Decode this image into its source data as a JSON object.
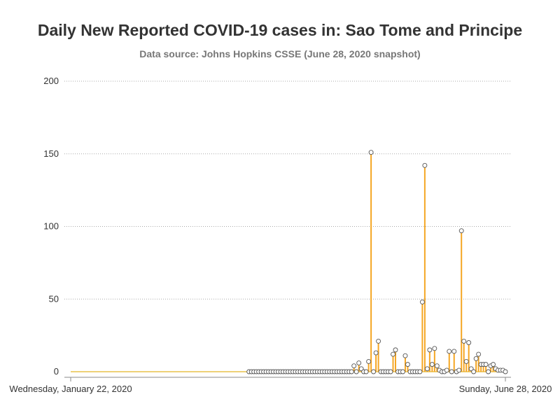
{
  "title": "Daily New Reported COVID-19 cases in: Sao Tome and Principe",
  "subtitle": "Data source: Johns Hopkins CSSE (June 28, 2020 snapshot)",
  "colors": {
    "needle": "#f5a623",
    "baseline": "#e8c24a",
    "marker_fill": "#ffffff",
    "marker_stroke": "#555555",
    "grid": "#aaaaaa",
    "axis": "#888888"
  },
  "chart_data": {
    "type": "needle",
    "x_start_label": "Wednesday, January 22, 2020",
    "x_end_label": "Sunday, June 28, 2020",
    "x_start": "2020-01-22",
    "x_end": "2020-06-28",
    "ylim": [
      0,
      200
    ],
    "yticks": [
      0,
      50,
      100,
      150,
      200
    ],
    "grid": true,
    "legend": "none",
    "marker_start": "2020-04-04",
    "values": [
      0,
      0,
      0,
      0,
      0,
      0,
      0,
      0,
      0,
      0,
      0,
      0,
      0,
      0,
      0,
      0,
      0,
      0,
      0,
      0,
      0,
      0,
      0,
      0,
      0,
      0,
      0,
      0,
      0,
      0,
      0,
      0,
      0,
      0,
      0,
      0,
      0,
      0,
      0,
      0,
      0,
      0,
      0,
      0,
      0,
      0,
      0,
      0,
      0,
      0,
      0,
      0,
      0,
      0,
      0,
      0,
      0,
      0,
      0,
      0,
      0,
      0,
      0,
      0,
      0,
      0,
      0,
      0,
      0,
      0,
      0,
      0,
      0,
      0,
      0,
      0,
      0,
      0,
      0,
      0,
      0,
      0,
      0,
      0,
      0,
      0,
      0,
      0,
      0,
      0,
      0,
      0,
      0,
      0,
      0,
      0,
      0,
      0,
      0,
      0,
      0,
      0,
      0,
      0,
      0,
      0,
      0,
      0,
      0,
      0,
      0,
      0,
      0,
      0,
      0,
      0,
      4,
      0,
      6,
      2,
      0,
      0,
      7,
      151,
      0,
      13,
      21,
      0,
      0,
      0,
      0,
      0,
      12,
      15,
      0,
      0,
      0,
      11,
      5,
      0,
      0,
      0,
      0,
      0,
      48,
      142,
      2,
      15,
      5,
      16,
      4,
      1,
      0,
      0,
      1,
      14,
      0,
      14,
      0,
      1,
      97,
      21,
      7,
      20,
      2,
      0,
      9,
      12,
      5,
      5,
      5,
      0,
      4,
      5,
      2,
      1,
      1,
      1,
      0
    ]
  }
}
